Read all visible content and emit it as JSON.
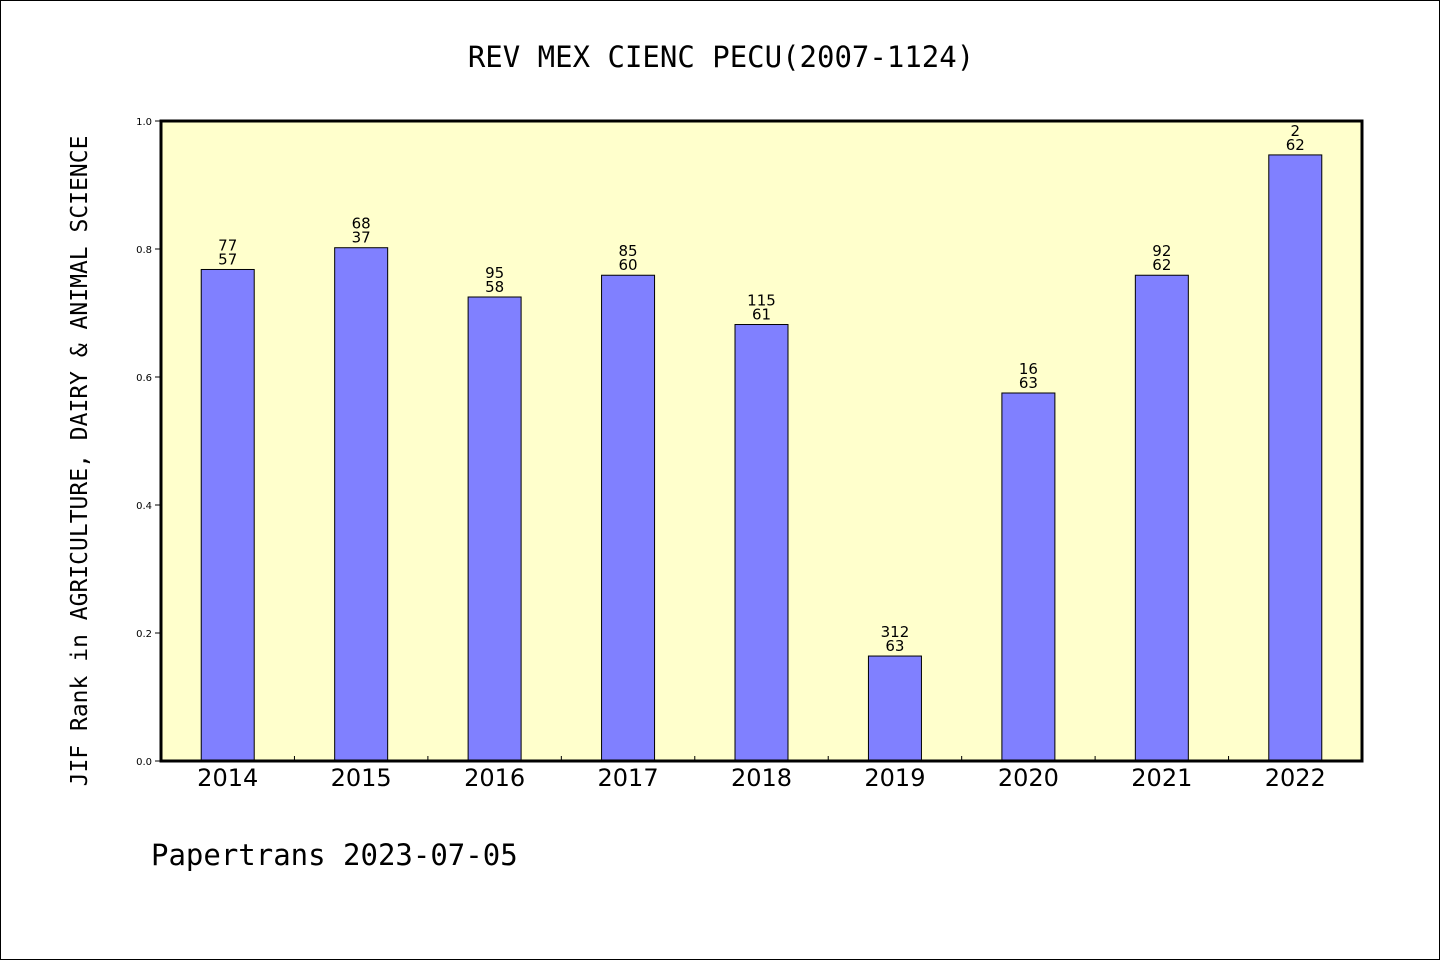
{
  "footer": "Papertrans 2023-07-05",
  "colors": {
    "plot_background": "#ffffcc",
    "bar_fill": "#8080ff",
    "bar_stroke": "#000000"
  },
  "chart_data": {
    "type": "bar",
    "title": "REV MEX CIENC PECU(2007-1124)",
    "ylabel": "JIF Rank in AGRICULTURE, DAIRY & ANIMAL SCIENCE",
    "xlabel": "",
    "ylim": [
      0,
      1.0
    ],
    "yticks": [
      "0.0",
      "0.2",
      "0.4",
      "0.6",
      "0.8",
      "1.0"
    ],
    "grid": false,
    "categories": [
      "2014",
      "2015",
      "2016",
      "2017",
      "2018",
      "2019",
      "2020",
      "2021",
      "2022"
    ],
    "values": [
      0.768,
      0.802,
      0.725,
      0.759,
      0.682,
      0.164,
      0.575,
      0.759,
      0.947
    ],
    "labels_top": [
      "77",
      "68",
      "95",
      "85",
      "115",
      "312",
      "16",
      "92",
      "2"
    ],
    "labels_bottom": [
      "57",
      "37",
      "58",
      "60",
      "61",
      "63",
      "63",
      "62",
      "62"
    ]
  }
}
